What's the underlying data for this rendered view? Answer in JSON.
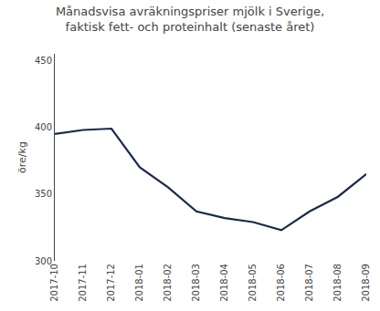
{
  "chart_data": {
    "type": "line",
    "title": "Månadsvisa avräkningspriser mjölk i Sverige,\nfaktisk fett- och proteinhalt (senaste året)",
    "ylabel": "öre/kg",
    "categories": [
      "2017-10",
      "2017-11",
      "2017-12",
      "2018-01",
      "2018-02",
      "2018-03",
      "2018-04",
      "2018-05",
      "2018-06",
      "2018-07",
      "2018-08",
      "2018-09"
    ],
    "values": [
      395,
      398,
      399,
      370,
      355,
      337,
      332,
      329,
      323,
      337,
      348,
      365
    ],
    "color": "#1a2a4a",
    "ylim": [
      300,
      455
    ],
    "yticks": [
      300,
      350,
      400,
      450
    ],
    "grid": false
  }
}
